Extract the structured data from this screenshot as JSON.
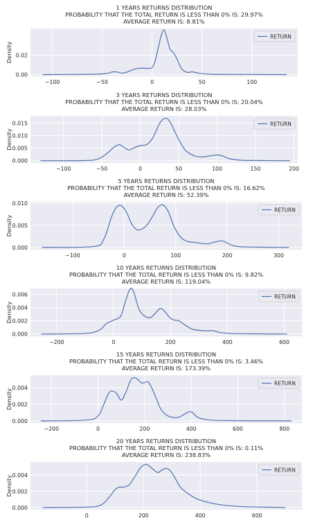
{
  "chart_data": [
    {
      "type": "line",
      "title": [
        "1 YEARS RETURNS DISTRIBUTION",
        "PROBABILITY THAT THE TOTAL RETURN IS LESS THAN 0% IS: 29.97%",
        "AVERAGE RETURN IS: 8.81%"
      ],
      "ylabel": "Density",
      "legend": "RETURN",
      "legend_position": "top-right",
      "grid": true,
      "xlim": [
        -122,
        146
      ],
      "ylim": [
        -0.0018,
        0.0475
      ],
      "xticks": [
        -100,
        -50,
        0,
        50,
        100
      ],
      "yticks": [
        0.0,
        0.02
      ],
      "ytick_labels": [
        "0.00",
        "0.02"
      ],
      "series": [
        {
          "name": "RETURN",
          "x": [
            -110,
            -60,
            -45,
            -40,
            -35,
            -30,
            -25,
            -20,
            -15,
            -10,
            -5,
            0,
            3,
            6,
            9,
            12,
            15,
            18,
            21,
            24,
            27,
            30,
            35,
            40,
            45,
            50,
            60,
            80,
            100,
            135
          ],
          "y": [
            0.0,
            0.0003,
            0.0012,
            0.0027,
            0.0026,
            0.0015,
            0.0026,
            0.0048,
            0.0062,
            0.0066,
            0.0064,
            0.0072,
            0.014,
            0.027,
            0.04,
            0.046,
            0.037,
            0.026,
            0.023,
            0.018,
            0.011,
            0.0055,
            0.0023,
            0.0028,
            0.0018,
            0.0009,
            0.0003,
            0.00015,
            0.0001,
            0.0
          ]
        }
      ]
    },
    {
      "type": "line",
      "title": [
        "3 YEARS RETURNS DISTRIBUTION",
        "PROBABILITY THAT THE TOTAL RETURN IS LESS THAN 0% IS: 20.04%",
        "AVERAGE RETURN IS: 28.03%"
      ],
      "ylabel": "Density",
      "legend": "RETURN",
      "legend_position": "top-right",
      "grid": true,
      "xlim": [
        -143,
        205
      ],
      "ylim": [
        -0.0009,
        0.0179
      ],
      "xticks": [
        -100,
        -50,
        0,
        50,
        100,
        150,
        200
      ],
      "yticks": [
        0.0,
        0.005,
        0.01,
        0.015
      ],
      "ytick_labels": [
        "0.000",
        "0.005",
        "0.010",
        "0.015"
      ],
      "series": [
        {
          "name": "RETURN",
          "x": [
            -130,
            -70,
            -55,
            -45,
            -35,
            -28,
            -22,
            -15,
            -8,
            0,
            8,
            15,
            20,
            25,
            30,
            35,
            40,
            45,
            50,
            55,
            60,
            70,
            80,
            90,
            100,
            108,
            115,
            130,
            150,
            195
          ],
          "y": [
            0.0,
            0.0001,
            0.0007,
            0.0025,
            0.0052,
            0.0064,
            0.0055,
            0.0043,
            0.0052,
            0.006,
            0.0064,
            0.0085,
            0.0115,
            0.0148,
            0.0166,
            0.0168,
            0.0148,
            0.0115,
            0.0085,
            0.0058,
            0.0038,
            0.002,
            0.0015,
            0.0019,
            0.0023,
            0.0018,
            0.0009,
            0.0002,
            0.0001,
            0.0
          ]
        }
      ]
    },
    {
      "type": "line",
      "title": [
        "5 YEARS RETURNS DISTRIBUTION",
        "PROBABILITY THAT THE TOTAL RETURN IS LESS THAN 0% IS: 16.62%",
        "AVERAGE RETURN IS: 52.39%"
      ],
      "ylabel": "Density",
      "legend": "RETURN",
      "legend_position": "top-right",
      "grid": true,
      "xlim": [
        -182,
        345
      ],
      "ylim": [
        -0.0005,
        0.0103
      ],
      "xticks": [
        -100,
        0,
        100,
        200,
        300
      ],
      "yticks": [
        0.0,
        0.005,
        0.01
      ],
      "ytick_labels": [
        "0.000",
        "0.005",
        "0.010"
      ],
      "series": [
        {
          "name": "RETURN",
          "x": [
            -160,
            -60,
            -40,
            -25,
            -15,
            -5,
            5,
            15,
            25,
            35,
            45,
            55,
            65,
            75,
            85,
            95,
            105,
            115,
            125,
            140,
            160,
            175,
            190,
            200,
            215,
            240,
            320
          ],
          "y": [
            0.0,
            0.0002,
            0.0018,
            0.0068,
            0.0091,
            0.0094,
            0.0078,
            0.0052,
            0.004,
            0.0042,
            0.0052,
            0.007,
            0.009,
            0.0096,
            0.0082,
            0.0052,
            0.003,
            0.0018,
            0.0013,
            0.0011,
            0.0008,
            0.0012,
            0.0015,
            0.001,
            0.0003,
            0.0001,
            0.0
          ]
        }
      ]
    },
    {
      "type": "line",
      "title": [
        "10 YEARS RETURNS DISTRIBUTION",
        "PROBABILITY THAT THE TOTAL RETURN IS LESS THAN 0% IS: 9.82%",
        "AVERAGE RETURN IS: 119.04%"
      ],
      "ylabel": "Density",
      "legend": "RETURN",
      "legend_position": "top-right",
      "grid": true,
      "xlim": [
        -292,
        662
      ],
      "ylim": [
        -0.00035,
        0.0069
      ],
      "xticks": [
        -200,
        0,
        200,
        400,
        600
      ],
      "yticks": [
        0.0,
        0.002,
        0.004,
        0.006
      ],
      "ytick_labels": [
        "0.000",
        "0.002",
        "0.004",
        "0.006"
      ],
      "series": [
        {
          "name": "RETURN",
          "x": [
            -255,
            -100,
            -50,
            -25,
            0,
            25,
            40,
            55,
            65,
            75,
            90,
            110,
            130,
            150,
            165,
            180,
            200,
            215,
            230,
            250,
            280,
            320,
            350,
            380,
            450,
            610
          ],
          "y": [
            0.0,
            0.0001,
            0.0006,
            0.0016,
            0.0021,
            0.0027,
            0.0047,
            0.0066,
            0.0069,
            0.0058,
            0.0037,
            0.0027,
            0.0025,
            0.0033,
            0.0039,
            0.0034,
            0.0024,
            0.0021,
            0.002,
            0.0014,
            0.0007,
            0.0005,
            0.0005,
            0.0002,
            5e-05,
            0.0
          ]
        }
      ]
    },
    {
      "type": "line",
      "title": [
        "15 YEARS RETURNS DISTRIBUTION",
        "PROBABILITY THAT THE TOTAL RETURN IS LESS THAN 0% IS: 3.46%",
        "AVERAGE RETURN IS: 173.39%"
      ],
      "ylabel": "Density",
      "legend": "RETURN",
      "legend_position": "top-right",
      "grid": true,
      "xlim": [
        -290,
        875
      ],
      "ylim": [
        -0.00026,
        0.0055
      ],
      "xticks": [
        -200,
        0,
        200,
        400,
        600,
        800
      ],
      "yticks": [
        0.0,
        0.002,
        0.004
      ],
      "ytick_labels": [
        "0.000",
        "0.002",
        "0.004"
      ],
      "series": [
        {
          "name": "RETURN",
          "x": [
            -245,
            -50,
            0,
            25,
            45,
            60,
            80,
            100,
            120,
            140,
            155,
            170,
            185,
            200,
            215,
            230,
            250,
            270,
            300,
            340,
            370,
            390,
            405,
            430,
            480,
            560,
            830
          ],
          "y": [
            0.0,
            0.0001,
            0.0006,
            0.002,
            0.0033,
            0.0036,
            0.0033,
            0.0025,
            0.0035,
            0.0049,
            0.0052,
            0.005,
            0.0046,
            0.0046,
            0.0047,
            0.004,
            0.0027,
            0.0014,
            0.0006,
            0.0004,
            0.0008,
            0.0011,
            0.001,
            0.0004,
            0.0001,
            3e-05,
            0.0
          ]
        }
      ]
    },
    {
      "type": "line",
      "title": [
        "20 YEARS RETURNS DISTRIBUTION",
        "PROBABILITY THAT THE TOTAL RETURN IS LESS THAN 0% IS: 0.11%",
        "AVERAGE RETURN IS: 238.83%"
      ],
      "ylabel": "Density",
      "legend": "RETURN",
      "legend_position": "top-right",
      "grid": true,
      "xlim": [
        -198,
        758
      ],
      "ylim": [
        -0.00027,
        0.0056
      ],
      "xticks": [
        0,
        200,
        400,
        600
      ],
      "yticks": [
        0.0,
        0.002,
        0.004
      ],
      "ytick_labels": [
        "0.000",
        "0.002",
        "0.004"
      ],
      "series": [
        {
          "name": "RETURN",
          "x": [
            -155,
            0,
            50,
            80,
            100,
            115,
            130,
            150,
            170,
            190,
            210,
            230,
            250,
            265,
            280,
            295,
            310,
            330,
            350,
            380,
            420,
            480,
            560,
            700
          ],
          "y": [
            0.0,
            5e-05,
            0.0003,
            0.0013,
            0.0022,
            0.0025,
            0.0025,
            0.0028,
            0.0038,
            0.0049,
            0.0053,
            0.0048,
            0.0043,
            0.0046,
            0.0048,
            0.0045,
            0.0037,
            0.0025,
            0.0019,
            0.0012,
            0.0007,
            0.0003,
            0.0001,
            0.0
          ]
        }
      ]
    }
  ],
  "colors": {
    "line": "#4c72b0",
    "plot_background": "#eaeaf2",
    "grid": "#ffffff",
    "text": "#262626"
  }
}
